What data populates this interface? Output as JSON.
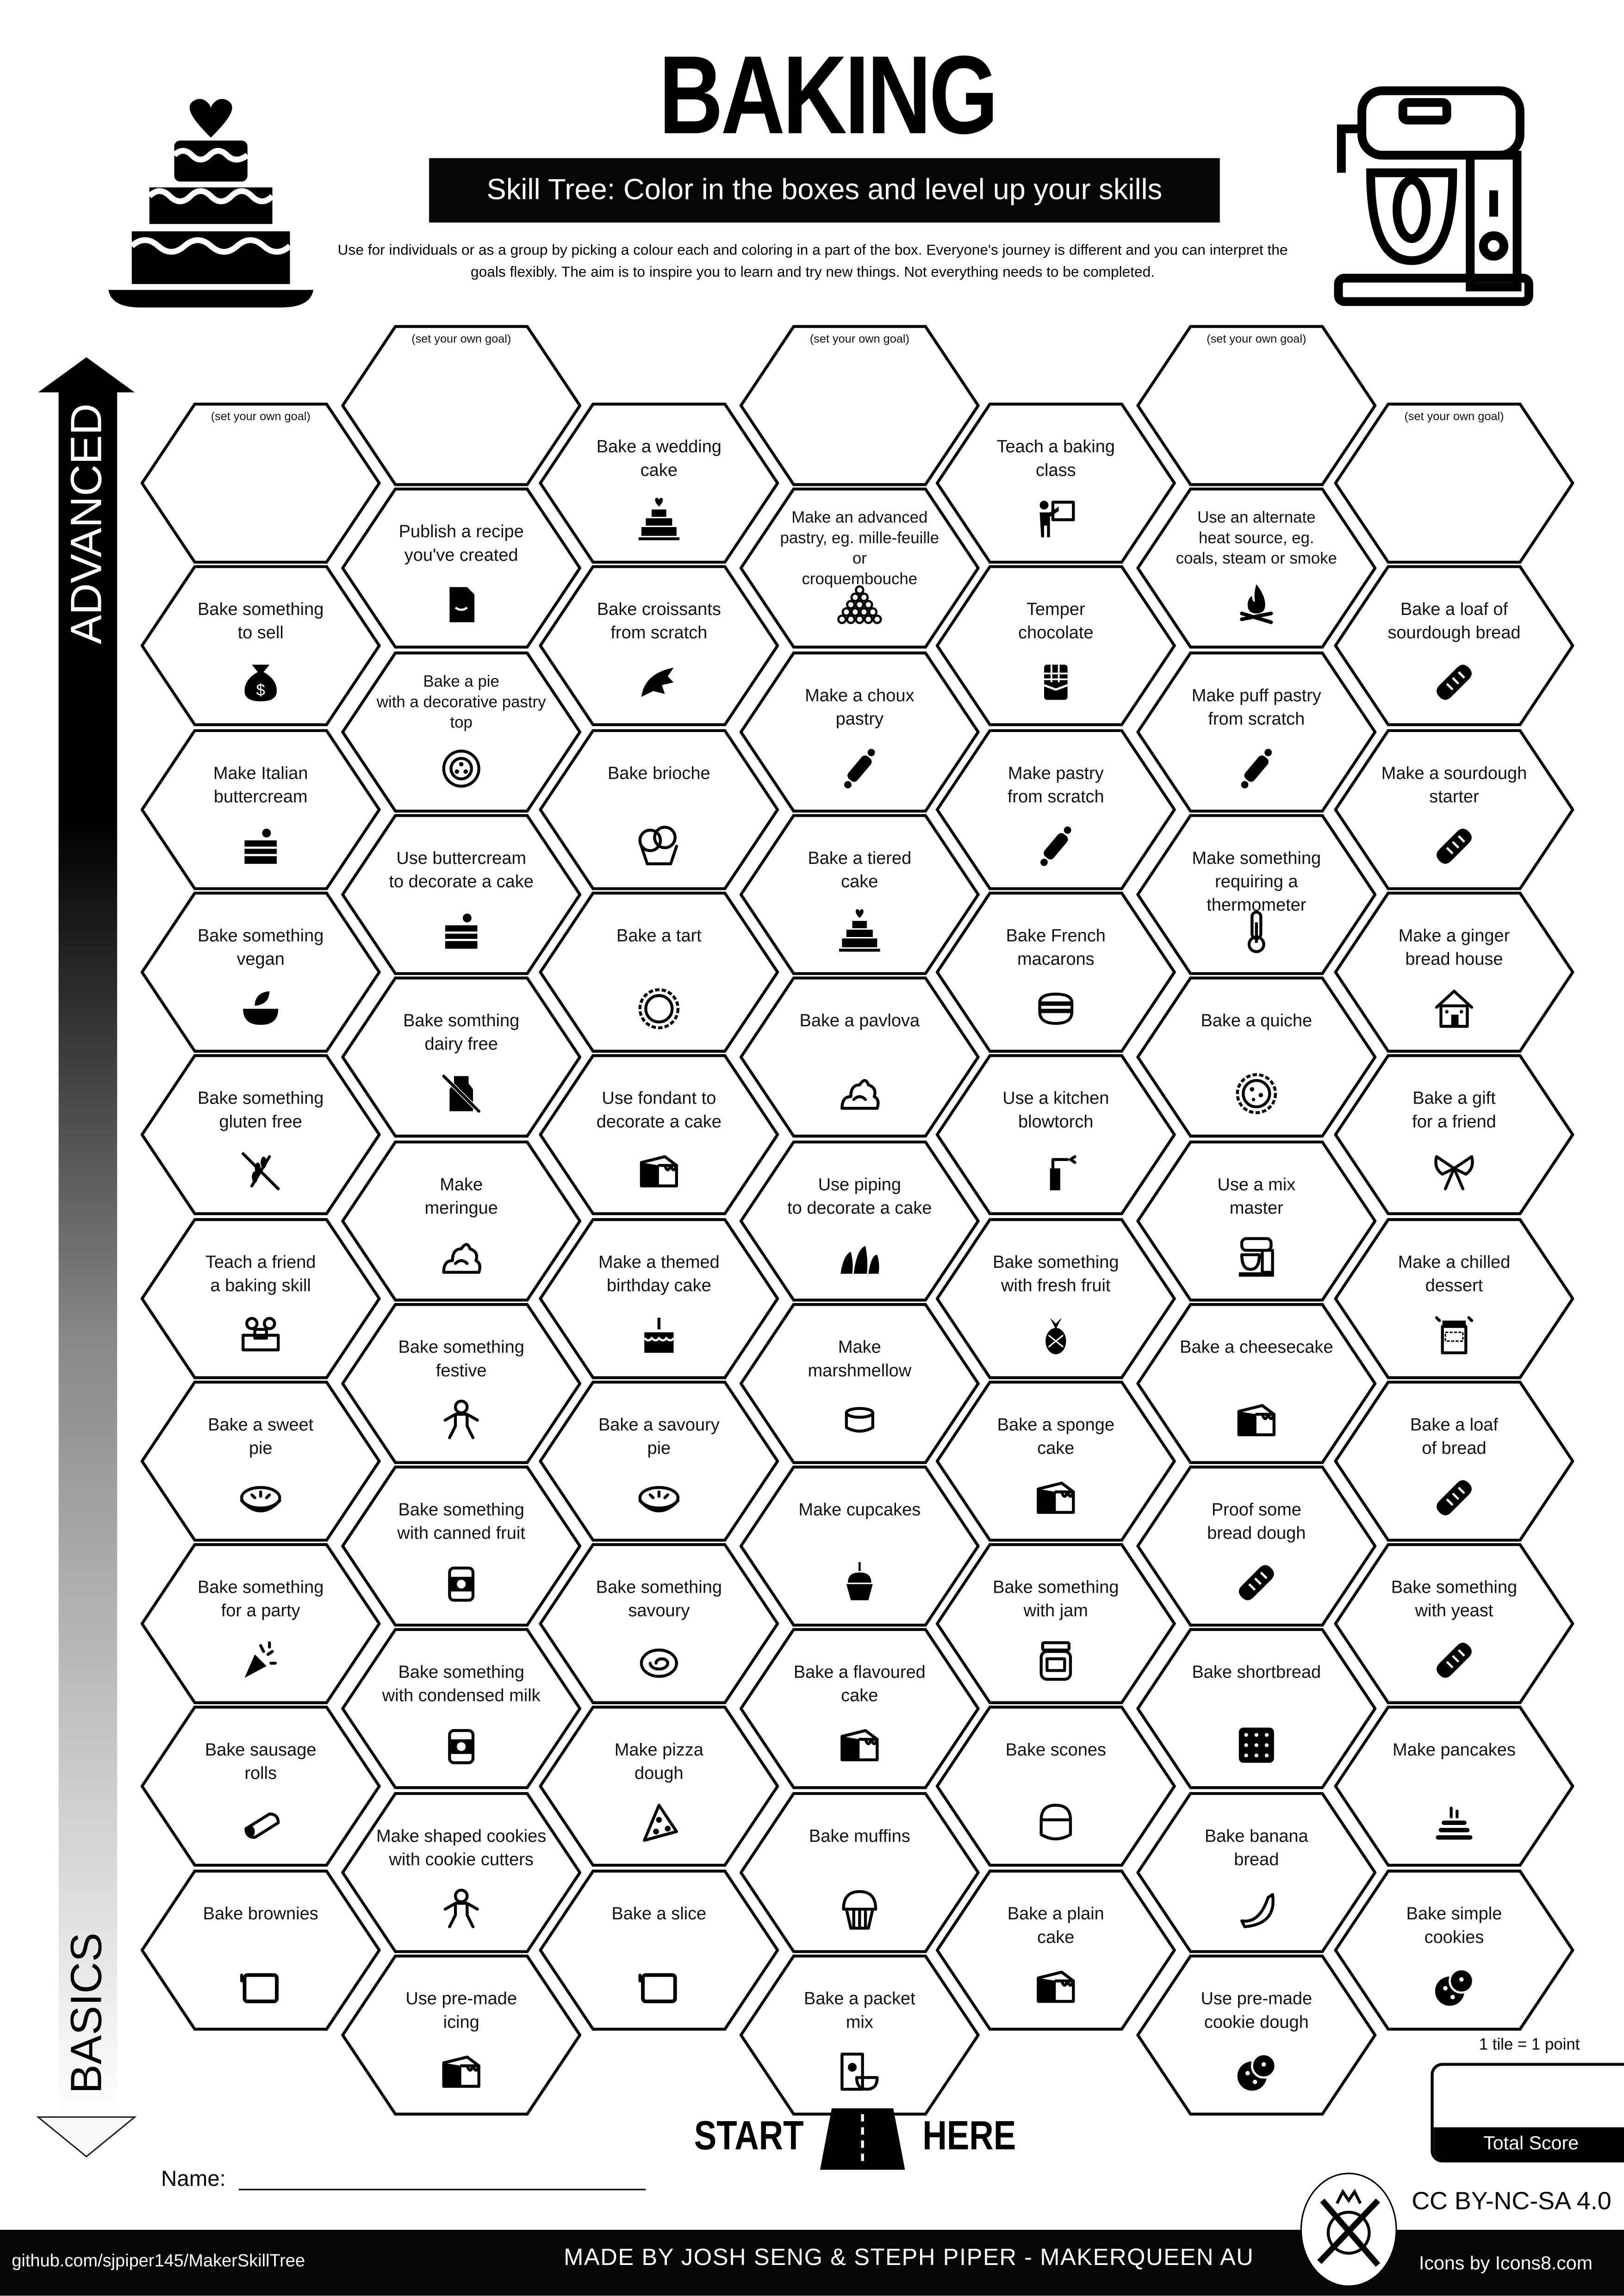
{
  "header": {
    "title": "BAKING",
    "subtitle": "Skill Tree:  Color in the boxes and level up your skills",
    "description": "Use for individuals or as a group by picking a colour each and coloring in a part of the box.  Everyone's journey is different and you can interpret the goals flexibly.  The aim is to inspire you to learn and try new things. Not everything needs to be completed."
  },
  "axis": {
    "top_label": "ADVANCED",
    "bottom_label": "BASICS"
  },
  "goal_text": "(set your own goal)",
  "columns": [
    [
      {
        "goal": true
      },
      {
        "label": "Bake something\nto sell",
        "icon": "money-bag"
      },
      {
        "label": "Make Italian\nbuttercream",
        "icon": "cake-slice"
      },
      {
        "label": "Bake something\nvegan",
        "icon": "vegan-bowl"
      },
      {
        "label": "Bake something\ngluten free",
        "icon": "no-wheat"
      },
      {
        "label": "Teach a friend\na baking skill",
        "icon": "friends"
      },
      {
        "label": "Bake a sweet\npie",
        "icon": "pie"
      },
      {
        "label": "Bake something\nfor a party",
        "icon": "party-popper"
      },
      {
        "label": "Bake sausage\nrolls",
        "icon": "sausage-roll"
      },
      {
        "label": "Bake brownies",
        "icon": "baking-tray"
      }
    ],
    [
      {
        "goal": true
      },
      {
        "label": "Publish a recipe\nyou've created",
        "icon": "document"
      },
      {
        "label": "Bake a pie\nwith a decorative pastry\ntop",
        "icon": "pie-top"
      },
      {
        "label": "Use buttercream\nto decorate a cake",
        "icon": "cake-slice"
      },
      {
        "label": "Bake somthing\ndairy free",
        "icon": "no-milk"
      },
      {
        "label": "Make\nmeringue",
        "icon": "meringue"
      },
      {
        "label": "Bake something\nfestive",
        "icon": "gingerbread-man"
      },
      {
        "label": "Bake something\nwith canned fruit",
        "icon": "can"
      },
      {
        "label": "Bake something\nwith condensed milk",
        "icon": "can"
      },
      {
        "label": "Make shaped cookies\nwith cookie cutters",
        "icon": "gingerbread-man"
      },
      {
        "label": "Use pre-made\nicing",
        "icon": "cheesecake"
      }
    ],
    [
      {
        "label": "Bake a wedding\ncake",
        "icon": "wedding-cake"
      },
      {
        "label": "Bake croissants\nfrom scratch",
        "icon": "croissant"
      },
      {
        "label": "Bake brioche",
        "icon": "brioche"
      },
      {
        "label": "Bake a tart",
        "icon": "tart"
      },
      {
        "label": "Use fondant to\ndecorate a cake",
        "icon": "cheesecake"
      },
      {
        "label": "Make a themed\nbirthday cake",
        "icon": "birthday-cake"
      },
      {
        "label": "Bake a savoury\npie",
        "icon": "pie"
      },
      {
        "label": "Bake something\nsavoury",
        "icon": "roll"
      },
      {
        "label": "Make pizza\ndough",
        "icon": "pizza"
      },
      {
        "label": "Bake a slice",
        "icon": "baking-tray"
      }
    ],
    [
      {
        "goal": true
      },
      {
        "label": "Make an advanced\npastry, eg. mille-feuille or\ncroquembouche",
        "icon": "croquembouche"
      },
      {
        "label": "Make a choux\npastry",
        "icon": "rolling-pin"
      },
      {
        "label": "Bake a tiered\ncake",
        "icon": "wedding-cake"
      },
      {
        "label": "Bake a pavlova",
        "icon": "meringue"
      },
      {
        "label": "Use piping\nto decorate a cake",
        "icon": "piping"
      },
      {
        "label": "Make\nmarshmellow",
        "icon": "marshmallow"
      },
      {
        "label": "Make cupcakes",
        "icon": "cupcake"
      },
      {
        "label": "Bake a flavoured\ncake",
        "icon": "cheesecake"
      },
      {
        "label": "Bake muffins",
        "icon": "muffin"
      },
      {
        "label": "Bake a packet\nmix",
        "icon": "packet-mix"
      }
    ],
    [
      {
        "label": "Teach a baking\nclass",
        "icon": "teacher"
      },
      {
        "label": "Temper\nchocolate",
        "icon": "chocolate"
      },
      {
        "label": "Make pastry\nfrom scratch",
        "icon": "rolling-pin"
      },
      {
        "label": "Bake French\nmacarons",
        "icon": "macaron"
      },
      {
        "label": "Use a kitchen\nblowtorch",
        "icon": "blowtorch"
      },
      {
        "label": "Bake something\nwith fresh fruit",
        "icon": "pineapple"
      },
      {
        "label": "Bake a sponge\ncake",
        "icon": "cheesecake"
      },
      {
        "label": "Bake something\nwith jam",
        "icon": "jam-jar"
      },
      {
        "label": "Bake scones",
        "icon": "scone"
      },
      {
        "label": "Bake a plain\ncake",
        "icon": "cheesecake"
      }
    ],
    [
      {
        "goal": true
      },
      {
        "label": "Use an alternate\nheat source, eg.\ncoals, steam or smoke",
        "icon": "campfire"
      },
      {
        "label": "Make puff pastry\nfrom scratch",
        "icon": "rolling-pin"
      },
      {
        "label": "Make something\nrequiring a thermometer",
        "icon": "thermometer"
      },
      {
        "label": "Bake a quiche",
        "icon": "quiche"
      },
      {
        "label": "Use a mix\nmaster",
        "icon": "stand-mixer"
      },
      {
        "label": "Bake a cheesecake",
        "icon": "cheesecake"
      },
      {
        "label": "Proof some\nbread dough",
        "icon": "bread"
      },
      {
        "label": "Bake shortbread",
        "icon": "shortbread"
      },
      {
        "label": "Bake banana\nbread",
        "icon": "banana"
      },
      {
        "label": "Use pre-made\ncookie dough",
        "icon": "cookie"
      }
    ],
    [
      {
        "goal": true
      },
      {
        "label": "Bake a loaf of\nsourdough bread",
        "icon": "bread"
      },
      {
        "label": "Make a sourdough\nstarter",
        "icon": "bread"
      },
      {
        "label": "Make a ginger\nbread house",
        "icon": "gingerbread-house"
      },
      {
        "label": "Bake a gift\nfor a friend",
        "icon": "gift-bow"
      },
      {
        "label": "Make a chilled\ndessert",
        "icon": "dessert-jar"
      },
      {
        "label": "Bake a loaf\nof bread",
        "icon": "bread"
      },
      {
        "label": "Bake something\nwith yeast",
        "icon": "bread"
      },
      {
        "label": "Make pancakes",
        "icon": "pancakes"
      },
      {
        "label": "Bake simple\ncookies",
        "icon": "cookie"
      }
    ]
  ],
  "start": {
    "left": "START",
    "right": "HERE"
  },
  "name_label": "Name:",
  "score": {
    "note": "1 tile = 1 point",
    "label": "Total Score"
  },
  "license": "CC BY-NC-SA 4.0",
  "footer": {
    "link": "github.com/sjpiper145/MakerSkillTree",
    "credit": "MADE BY JOSH SENG & STEPH PIPER  -  MAKERQUEEN AU",
    "icons_credit": "Icons by Icons8.com"
  }
}
